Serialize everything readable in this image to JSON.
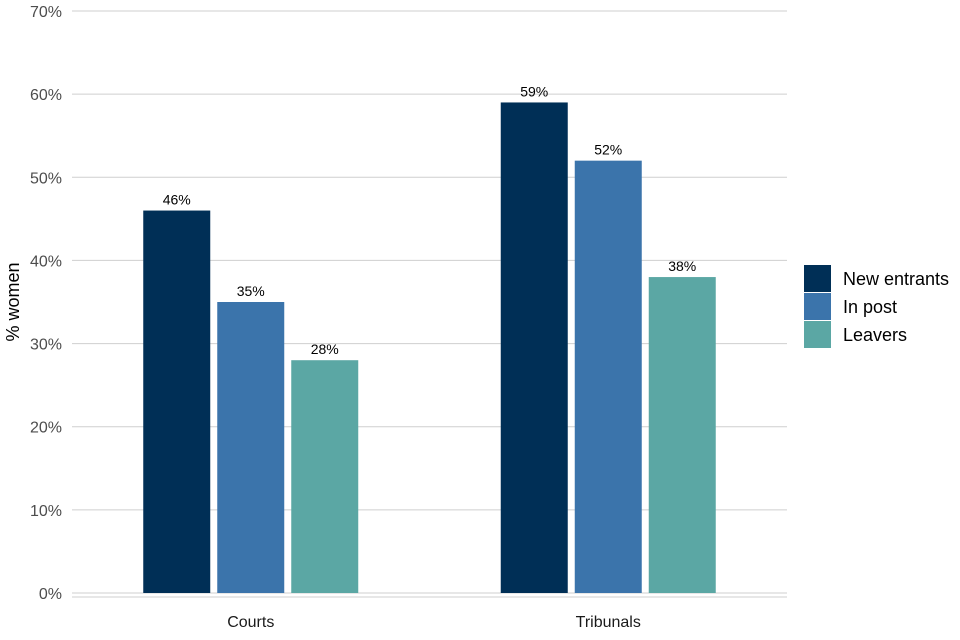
{
  "chart_data": {
    "type": "bar",
    "categories": [
      "Courts",
      "Tribunals"
    ],
    "series": [
      {
        "name": "New entrants",
        "values": [
          46,
          59
        ],
        "labels": [
          "46%",
          "59%"
        ],
        "color": "#002f56"
      },
      {
        "name": "In post",
        "values": [
          35,
          52
        ],
        "labels": [
          "35%",
          "52%"
        ],
        "color": "#3b74ab"
      },
      {
        "name": "Leavers",
        "values": [
          28,
          38
        ],
        "labels": [
          "28%",
          "38%"
        ],
        "color": "#5ba7a4"
      }
    ],
    "ylabel": "% women",
    "xlabel": "",
    "ylim": [
      0,
      70
    ],
    "yticks": [
      0,
      10,
      20,
      30,
      40,
      50,
      60,
      70
    ],
    "ytick_labels": [
      "0%",
      "10%",
      "20%",
      "30%",
      "40%",
      "50%",
      "60%",
      "70%"
    ],
    "grid": true,
    "legend_position": "right"
  }
}
